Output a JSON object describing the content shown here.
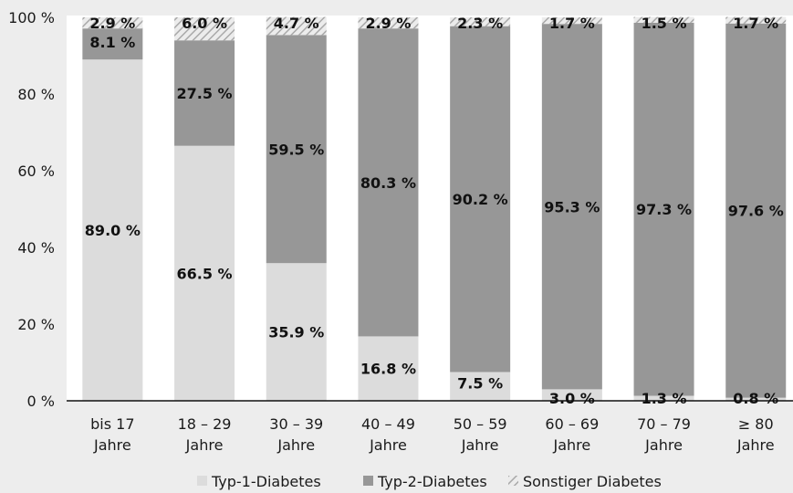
{
  "chart_data": {
    "type": "bar",
    "stacked": true,
    "unit_suffix": " %",
    "categories": [
      [
        "bis 17",
        "Jahre"
      ],
      [
        "18 – 29",
        "Jahre"
      ],
      [
        "30 – 39",
        "Jahre"
      ],
      [
        "40 – 49",
        "Jahre"
      ],
      [
        "50 – 59",
        "Jahre"
      ],
      [
        "60 – 69",
        "Jahre"
      ],
      [
        "70 – 79",
        "Jahre"
      ],
      [
        "≥ 80",
        "Jahre"
      ]
    ],
    "series": [
      {
        "name": "Typ-1-Diabetes",
        "values": [
          89.0,
          66.5,
          35.9,
          16.8,
          7.5,
          3.0,
          1.3,
          0.8
        ],
        "labels": [
          "89.0 %",
          "66.5 %",
          "35.9 %",
          "16.8 %",
          "7.5 %",
          "3.0 %",
          "1.3 %",
          "0.8 %"
        ],
        "color": "#dcdcdc"
      },
      {
        "name": "Typ-2-Diabetes",
        "values": [
          8.1,
          27.5,
          59.5,
          80.3,
          90.2,
          95.3,
          97.3,
          97.6
        ],
        "labels": [
          "8.1 %",
          "27.5 %",
          "59.5 %",
          "80.3 %",
          "90.2 %",
          "95.3 %",
          "97.3 %",
          "97.6 %"
        ],
        "color": "#979797"
      },
      {
        "name": "Sonstiger Diabetes",
        "values": [
          2.9,
          6.0,
          4.7,
          2.9,
          2.3,
          1.7,
          1.5,
          1.7
        ],
        "labels": [
          "2.9 %",
          "6.0 %",
          "4.7 %",
          "2.9 %",
          "2.3 %",
          "1.7 %",
          "1.5 %",
          "1.7 %"
        ],
        "color": "hatched"
      }
    ],
    "ylim": [
      0,
      100
    ],
    "yticks": [
      0,
      20,
      40,
      60,
      80,
      100
    ],
    "ytick_labels": [
      "0 %",
      "20 %",
      "40 %",
      "60 %",
      "80 %",
      "100 %"
    ],
    "grid": false,
    "legend_position": "bottom"
  }
}
